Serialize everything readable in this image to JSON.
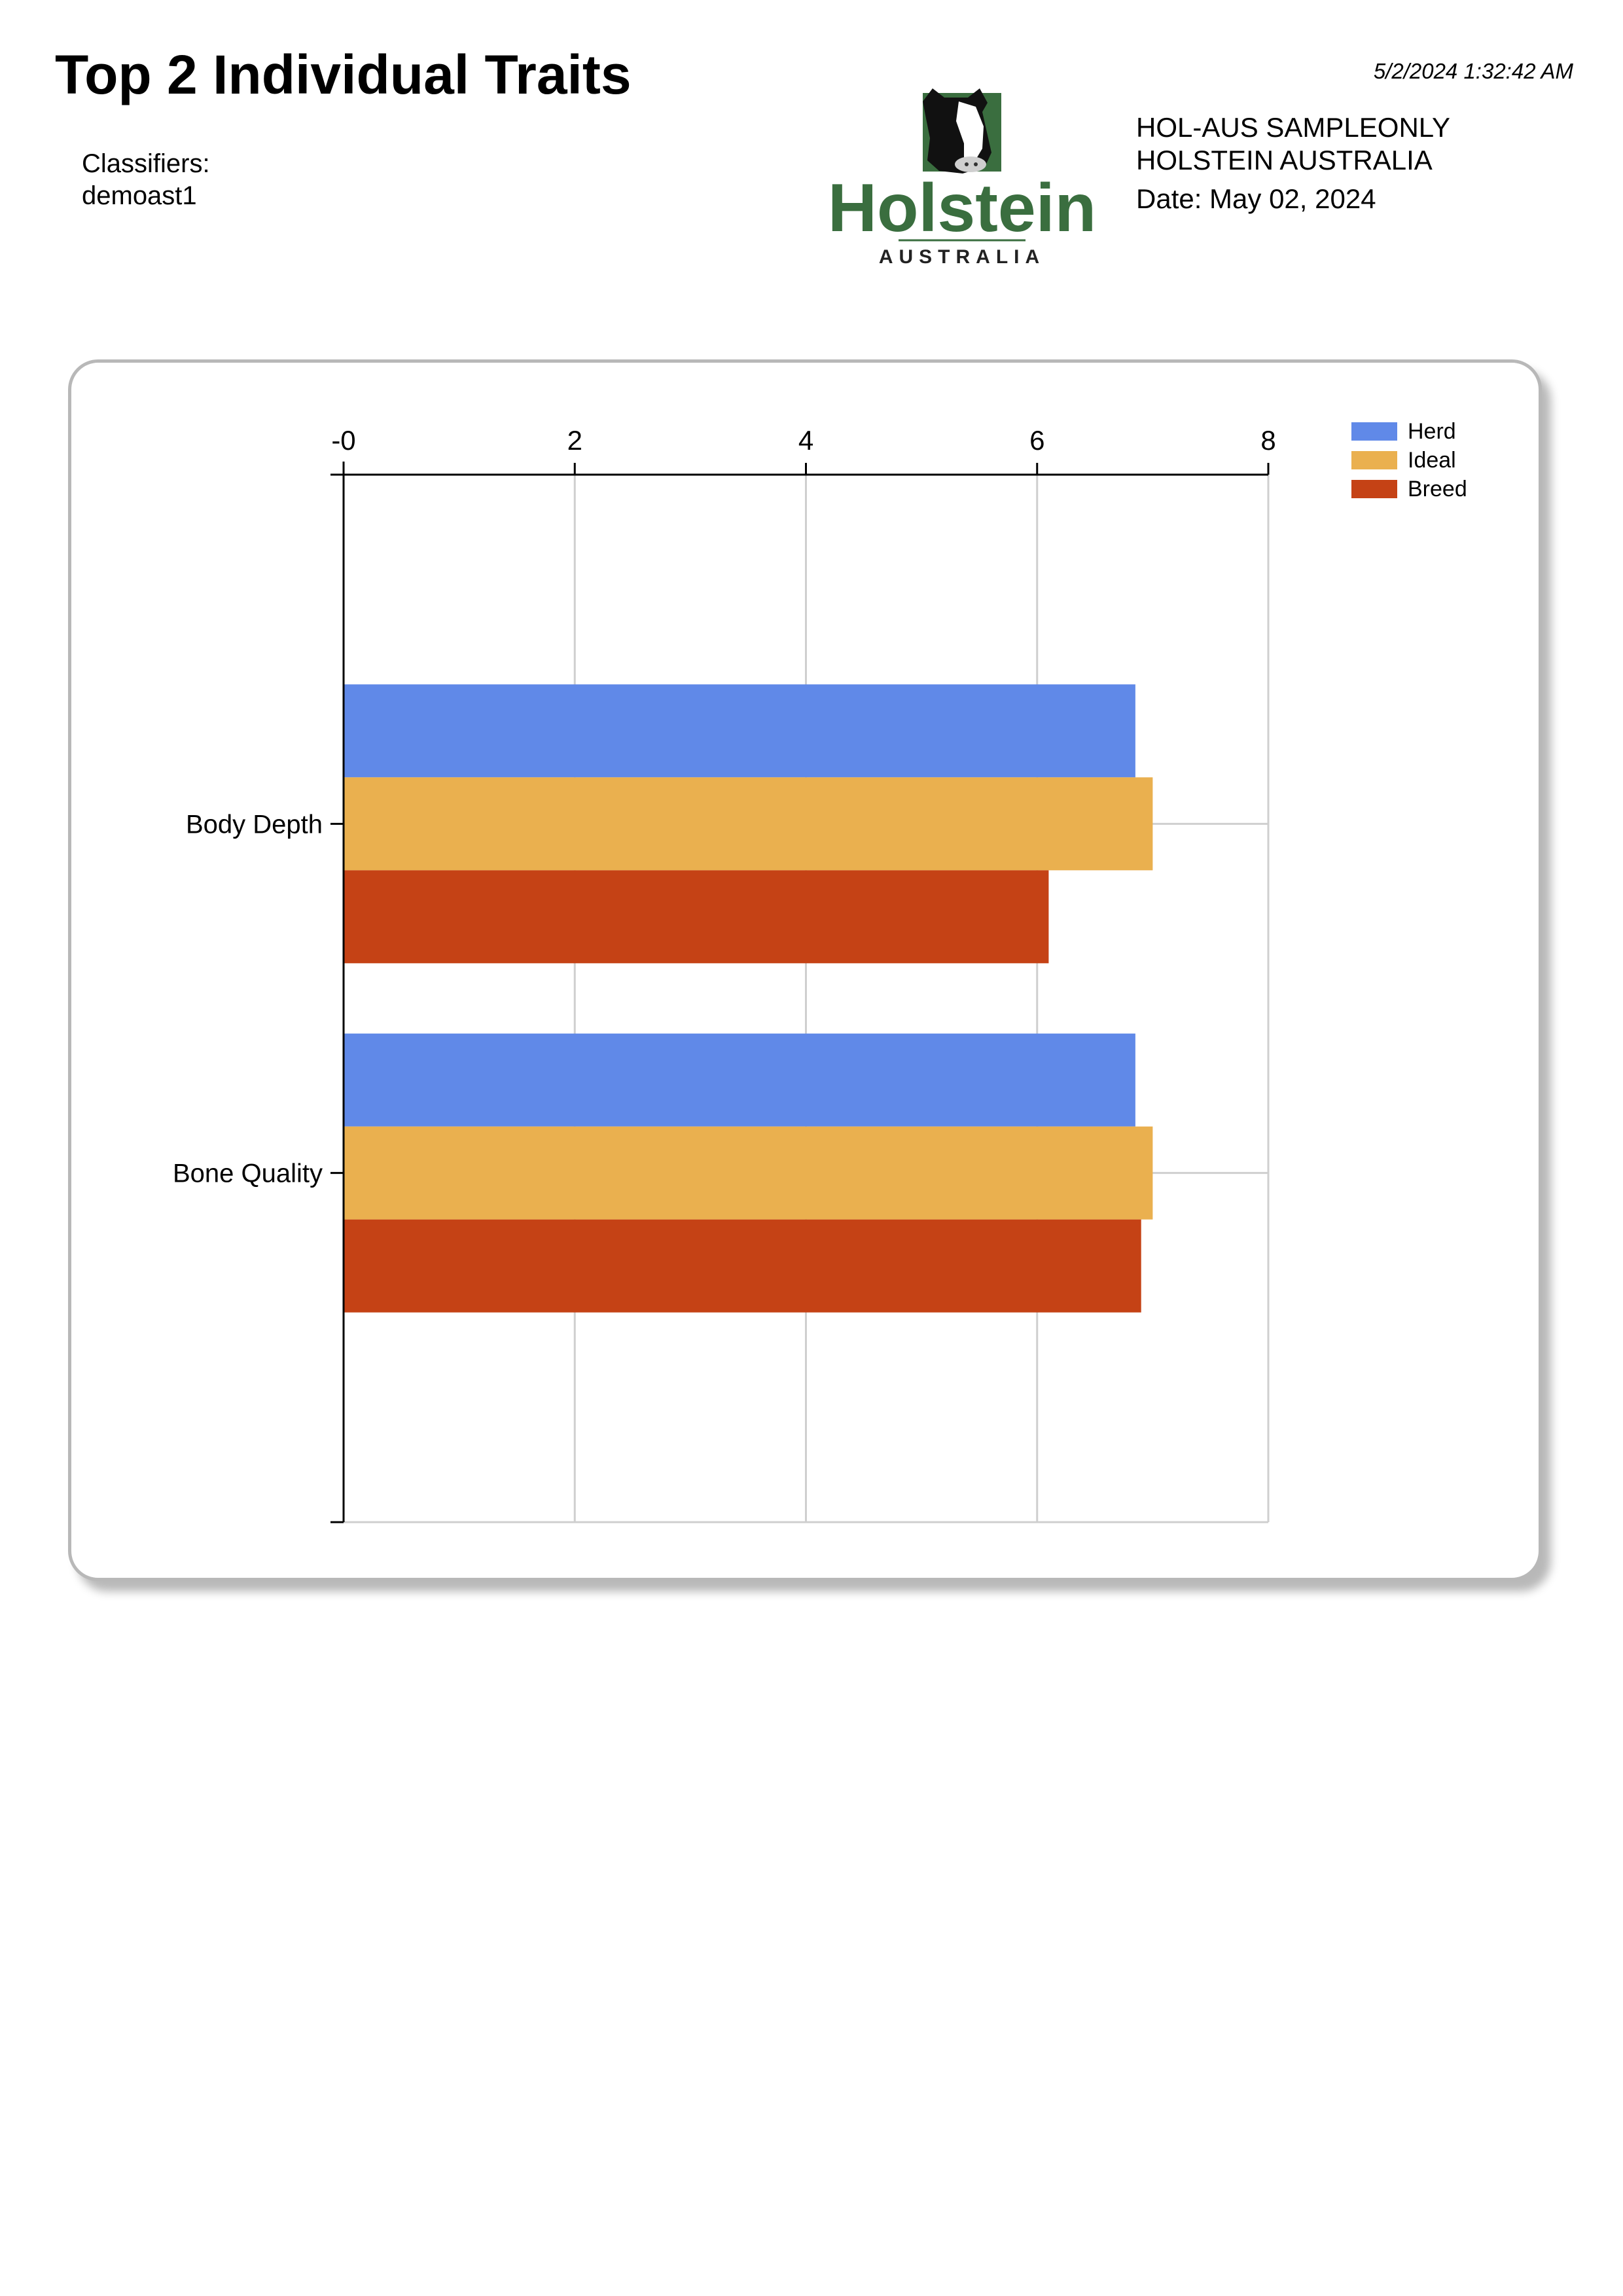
{
  "header": {
    "title": "Top 2 Individual Traits",
    "timestamp": "5/2/2024 1:32:42 AM",
    "classifiers_label": "Classifiers:",
    "classifiers_value": "demoast1"
  },
  "logo": {
    "icon": "cow-head-icon",
    "wordmark": "Holstein",
    "subtitle": "AUSTRALIA",
    "brand_color": "#3a6e3f"
  },
  "org": {
    "line1": "HOL-AUS SAMPLEONLY",
    "line2": "HOLSTEIN AUSTRALIA",
    "date": "Date: May 02, 2024"
  },
  "chart_data": {
    "type": "bar",
    "orientation": "horizontal",
    "categories": [
      "Body Depth",
      "Bone Quality"
    ],
    "series": [
      {
        "name": "Herd",
        "color": "#6089e8",
        "values": [
          6.85,
          6.85
        ]
      },
      {
        "name": "Ideal",
        "color": "#eab04f",
        "values": [
          7.0,
          7.0
        ]
      },
      {
        "name": "Breed",
        "color": "#c54215",
        "values": [
          6.1,
          6.9
        ]
      }
    ],
    "xlim": [
      0,
      8
    ],
    "x_ticks": [
      0,
      2,
      4,
      6,
      8
    ],
    "x_tick_labels": [
      "-0",
      "2",
      "4",
      "6",
      "8"
    ],
    "x_axis_position": "top",
    "grid": true,
    "legend": "top-right"
  }
}
